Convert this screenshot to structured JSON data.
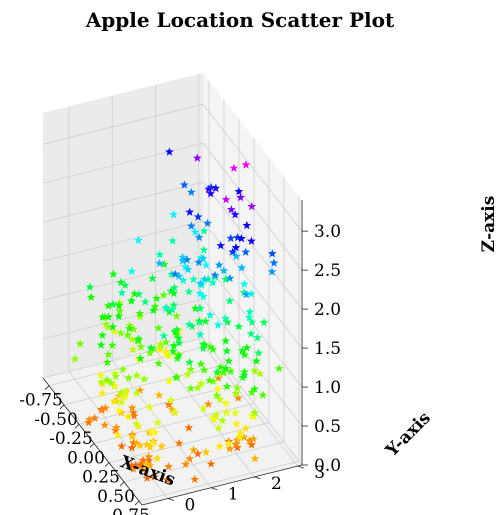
{
  "chart_data": {
    "type": "scatter",
    "projection": "3d",
    "title": "Apple Location Scatter Plot",
    "xlabel": "X-axis",
    "ylabel": "Y-axis",
    "zlabel": "Z-axis",
    "xlim": [
      -0.85,
      0.8
    ],
    "ylim": [
      -0.6,
      3.1
    ],
    "zlim": [
      0,
      3.4
    ],
    "xticks": [
      "-0.75",
      "-0.50",
      "-0.25",
      "0.00",
      "0.25",
      "0.50",
      "0.75"
    ],
    "xtick_values": [
      -0.75,
      -0.5,
      -0.25,
      0.0,
      0.25,
      0.5,
      0.75
    ],
    "yticks": [
      "0",
      "1",
      "2",
      "3"
    ],
    "ytick_values": [
      0,
      1,
      2,
      3
    ],
    "zticks": [
      "0.0",
      "0.5",
      "1.0",
      "1.5",
      "2.0",
      "2.5",
      "3.0"
    ],
    "ztick_values": [
      0,
      0.5,
      1.0,
      1.5,
      2.0,
      2.5,
      3.0
    ],
    "marker": "star",
    "colormap": "gist_rainbow",
    "color_by": "z",
    "grid": true,
    "clusters": [
      {
        "center": [
          -0.15,
          0.0,
          0.45
        ],
        "spread": [
          0.18,
          0.22,
          0.3
        ],
        "count": 45
      },
      {
        "center": [
          0.4,
          0.0,
          0.2
        ],
        "spread": [
          0.12,
          0.2,
          0.18
        ],
        "count": 28
      },
      {
        "center": [
          0.5,
          1.8,
          0.4
        ],
        "spread": [
          0.12,
          0.4,
          0.22
        ],
        "count": 24
      },
      {
        "center": [
          -0.45,
          1.0,
          0.9
        ],
        "spread": [
          0.15,
          0.5,
          0.35
        ],
        "count": 50
      },
      {
        "center": [
          0.05,
          1.3,
          1.1
        ],
        "spread": [
          0.25,
          0.55,
          0.4
        ],
        "count": 70
      },
      {
        "center": [
          0.35,
          2.0,
          1.1
        ],
        "spread": [
          0.22,
          0.5,
          0.4
        ],
        "count": 40
      },
      {
        "center": [
          0.05,
          2.0,
          1.9
        ],
        "spread": [
          0.22,
          0.5,
          0.35
        ],
        "count": 34
      },
      {
        "center": [
          0.1,
          2.5,
          2.6
        ],
        "spread": [
          0.3,
          0.4,
          0.3
        ],
        "count": 24
      },
      {
        "center": [
          -0.5,
          2.2,
          1.8
        ],
        "spread": [
          0.12,
          0.4,
          0.35
        ],
        "count": 12
      },
      {
        "center": [
          0.1,
          1.2,
          0.1
        ],
        "spread": [
          0.3,
          0.7,
          0.08
        ],
        "count": 25
      }
    ]
  }
}
